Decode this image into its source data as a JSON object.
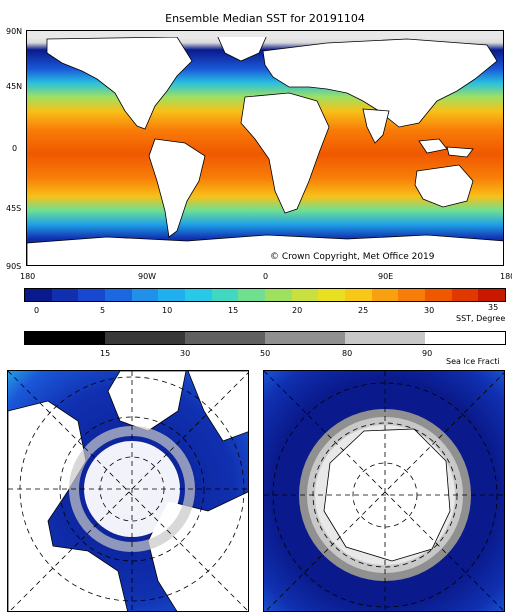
{
  "title": "Ensemble Median SST for 20191104",
  "map": {
    "lat_labels": [
      "90N",
      "45N",
      "0",
      "45S",
      "90S"
    ],
    "lon_labels": [
      "180",
      "90W",
      "0",
      "90E",
      "180"
    ],
    "copyright": "© Crown Copyright, Met Office 2019"
  },
  "sst_colorbar": {
    "tick_labels": [
      "0",
      "5",
      "10",
      "15",
      "20",
      "25",
      "30",
      "35"
    ],
    "unit_label": "SST, Degree",
    "colors": [
      "#0a1a8c",
      "#1030b0",
      "#1848d0",
      "#1c68e0",
      "#2090e8",
      "#20b0f0",
      "#28c8e8",
      "#40d8c0",
      "#70e090",
      "#a0e060",
      "#c8e040",
      "#e8e020",
      "#f8c818",
      "#f8a010",
      "#f87c08",
      "#f05800",
      "#e03800",
      "#c81800"
    ]
  },
  "ice_colorbar": {
    "tick_labels": [
      "15",
      "30",
      "50",
      "80",
      "90"
    ],
    "unit_label": "Sea Ice Fracti",
    "colors": [
      "#000000",
      "#383838",
      "#606060",
      "#909090",
      "#c8c8c8",
      "#ffffff"
    ]
  },
  "colors": {
    "land": "#ffffff",
    "ocean_warm": "#f06010",
    "ocean_mid": "#f8c018",
    "ocean_cool": "#20a0e8",
    "ocean_cold": "#0a1a8c",
    "ice": "#c8c8c8"
  }
}
